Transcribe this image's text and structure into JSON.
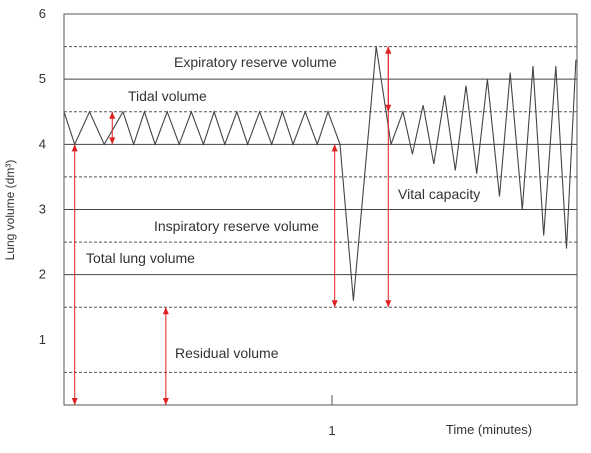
{
  "chart_data": {
    "type": "line",
    "title": "",
    "xlabel": "Time (minutes)",
    "ylabel": "Lung volume (dm³)",
    "ylim": [
      0,
      6
    ],
    "yticks": [
      1,
      2,
      3,
      4,
      5,
      6
    ],
    "xticks": [
      1
    ],
    "grid": {
      "solid": [
        2,
        3,
        4,
        5
      ],
      "dashed": [
        0.5,
        1.5,
        2.5,
        3.5,
        4.5,
        5.5
      ]
    },
    "series": [
      {
        "name": "",
        "color": "#444444",
        "points": [
          [
            0.0,
            4.5
          ],
          [
            0.04,
            4.0
          ],
          [
            0.095,
            4.5
          ],
          [
            0.15,
            4.0
          ],
          [
            0.22,
            4.5
          ],
          [
            0.26,
            4.0
          ],
          [
            0.3,
            4.5
          ],
          [
            0.34,
            4.0
          ],
          [
            0.385,
            4.5
          ],
          [
            0.43,
            4.0
          ],
          [
            0.475,
            4.5
          ],
          [
            0.52,
            4.0
          ],
          [
            0.56,
            4.5
          ],
          [
            0.6,
            4.0
          ],
          [
            0.645,
            4.5
          ],
          [
            0.685,
            4.0
          ],
          [
            0.73,
            4.5
          ],
          [
            0.775,
            4.0
          ],
          [
            0.815,
            4.5
          ],
          [
            0.855,
            4.0
          ],
          [
            0.9,
            4.5
          ],
          [
            0.945,
            4.0
          ],
          [
            0.985,
            4.5
          ],
          [
            1.03,
            4.0
          ],
          [
            1.08,
            1.6
          ],
          [
            1.165,
            5.5
          ],
          [
            1.22,
            4.0
          ],
          [
            1.265,
            4.5
          ],
          [
            1.3,
            3.85
          ],
          [
            1.34,
            4.6
          ],
          [
            1.38,
            3.7
          ],
          [
            1.42,
            4.75
          ],
          [
            1.46,
            3.6
          ],
          [
            1.5,
            4.9
          ],
          [
            1.54,
            3.55
          ],
          [
            1.58,
            5.0
          ],
          [
            1.625,
            3.2
          ],
          [
            1.665,
            5.1
          ],
          [
            1.71,
            3.0
          ],
          [
            1.75,
            5.2
          ],
          [
            1.79,
            2.6
          ],
          [
            1.835,
            5.2
          ],
          [
            1.875,
            2.4
          ],
          [
            1.91,
            5.3
          ]
        ]
      }
    ],
    "annotations": [
      {
        "label": "Expiratory reserve volume",
        "x": 1.21,
        "from": 4.5,
        "to": 5.5
      },
      {
        "label": "Tidal volume",
        "x": 0.18,
        "from": 4.0,
        "to": 4.5
      },
      {
        "label": "Vital capacity",
        "x": 1.21,
        "from": 1.5,
        "to": 5.5
      },
      {
        "label": "Inspiratory reserve volume",
        "x": 1.01,
        "from": 1.5,
        "to": 4.0
      },
      {
        "label": "Total lung volume",
        "x": 0.04,
        "from": 0.0,
        "to": 4.0
      },
      {
        "label": "Residual volume",
        "x": 0.38,
        "from": 0.0,
        "to": 1.5
      }
    ]
  }
}
